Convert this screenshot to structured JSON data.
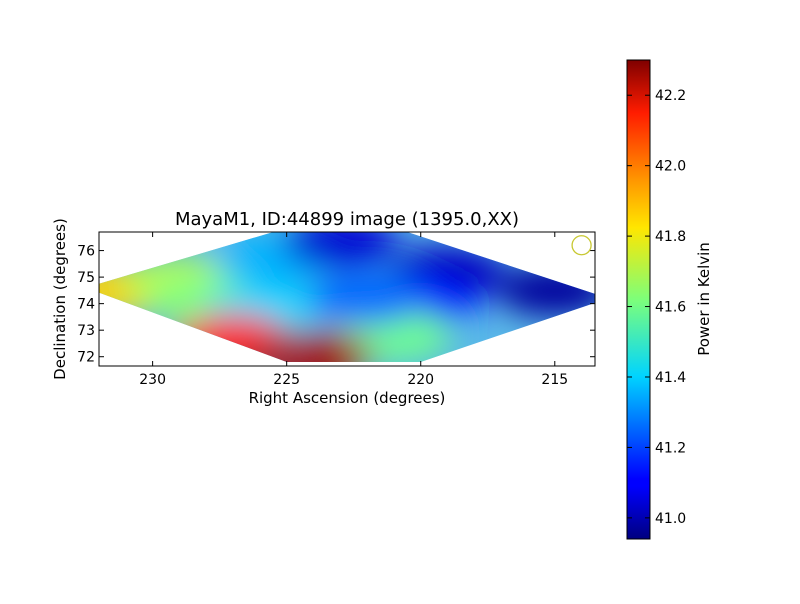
{
  "chart_data": {
    "type": "heatmap",
    "title": "MayaM1, ID:44899 image (1395.0,XX)",
    "xlabel": "Right Ascension (degrees)",
    "ylabel": "Declination (degrees)",
    "xlim": [
      232,
      213.5
    ],
    "ylim": [
      71.65,
      76.7
    ],
    "xticks": [
      230,
      225,
      220,
      215
    ],
    "yticks": [
      72,
      73,
      74,
      75,
      76
    ],
    "colorbar": {
      "label": "Power in Kelvin",
      "range": [
        40.94,
        42.3
      ],
      "ticks": [
        "41.0",
        "41.2",
        "41.4",
        "41.6",
        "41.8",
        "42.0",
        "42.2"
      ],
      "colormap": "jet"
    },
    "beam_marker": {
      "ra": 214,
      "dec": 76.2,
      "color": "#c8c832"
    },
    "field_outline": [
      [
        232.5,
        74.6
      ],
      [
        225.5,
        76.7
      ],
      [
        220.5,
        76.7
      ],
      [
        213,
        74.2
      ],
      [
        220,
        71.8
      ],
      [
        225,
        71.8
      ]
    ],
    "field_values": [
      {
        "ra": 231.5,
        "dec": 74.5,
        "value": 41.85
      },
      {
        "ra": 229,
        "dec": 74.8,
        "value": 41.7
      },
      {
        "ra": 228,
        "dec": 74.1,
        "value": 41.62
      },
      {
        "ra": 225.5,
        "dec": 75.6,
        "value": 41.35
      },
      {
        "ra": 223,
        "dec": 76.3,
        "value": 41.05
      },
      {
        "ra": 219,
        "dec": 75.2,
        "value": 41.02
      },
      {
        "ra": 215,
        "dec": 74.5,
        "value": 40.98
      },
      {
        "ra": 220,
        "dec": 74.1,
        "value": 41.15
      },
      {
        "ra": 226,
        "dec": 73.6,
        "value": 41.4
      },
      {
        "ra": 221,
        "dec": 72.8,
        "value": 41.6
      },
      {
        "ra": 227,
        "dec": 72.6,
        "value": 42.1
      },
      {
        "ra": 224,
        "dec": 72.0,
        "value": 42.25
      },
      {
        "ra": 222,
        "dec": 74.2,
        "value": 41.25
      }
    ]
  }
}
